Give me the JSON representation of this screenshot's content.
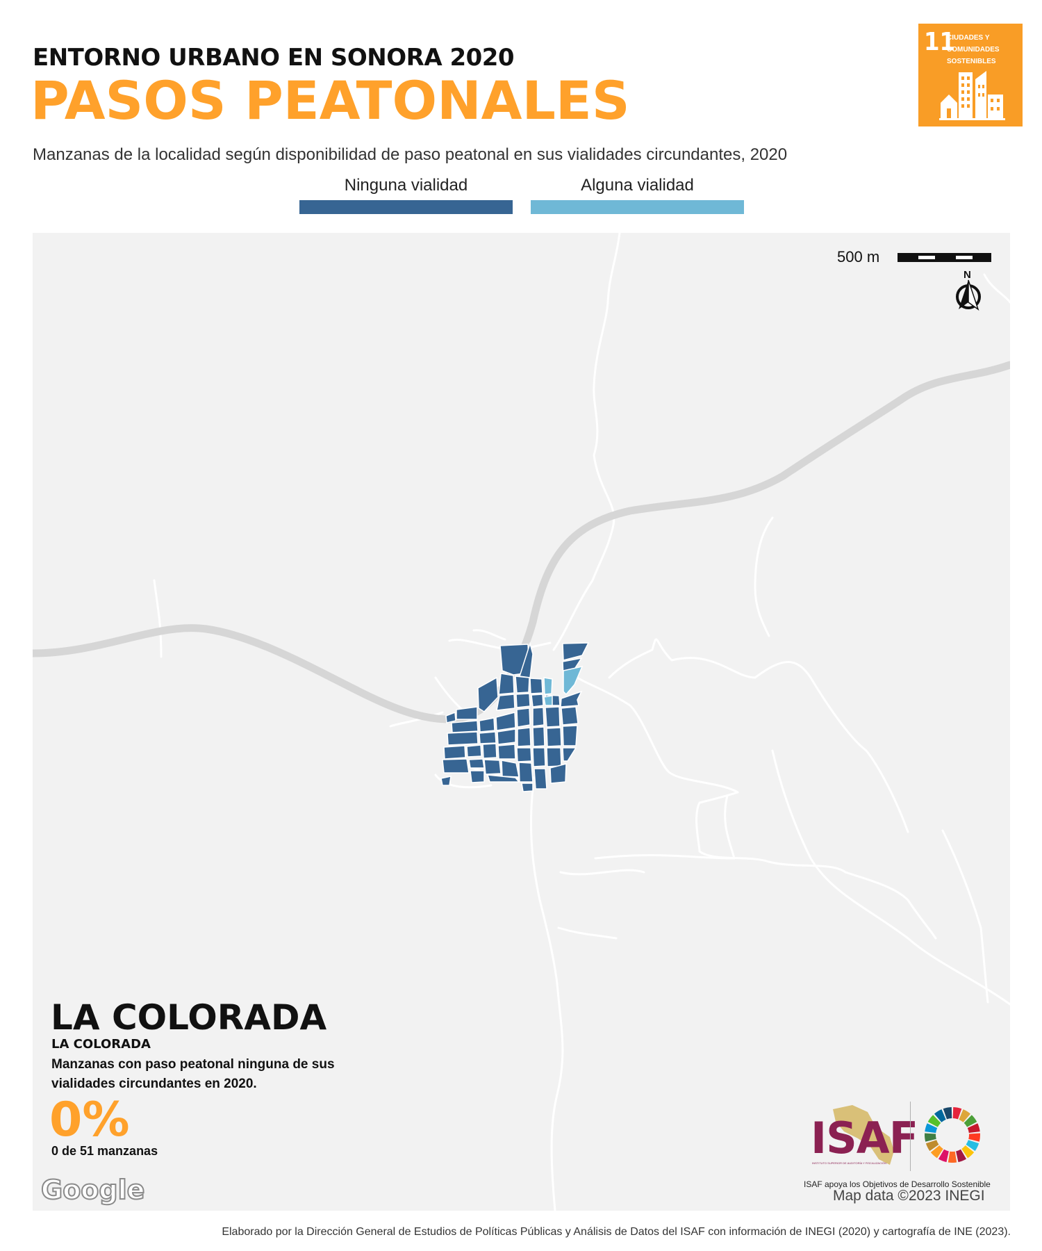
{
  "header": {
    "kicker": "ENTORNO URBANO EN SONORA 2020",
    "title": "PASOS PEATONALES",
    "subtitle": "Manzanas de la localidad según disponibilidad de paso peatonal en sus vialidades circundantes, 2020"
  },
  "legend": [
    {
      "label": "Ninguna vialidad",
      "color": "#376593"
    },
    {
      "label": "Alguna vialidad",
      "color": "#6fb8d6"
    }
  ],
  "sdg_badge": {
    "number": "11",
    "line1": "CIUDADES Y",
    "line2": "COMUNIDADES",
    "line3": "SOSTENIBLES",
    "color": "#f99d26",
    "icon": "city-buildings-icon"
  },
  "map": {
    "scale_label": "500 m",
    "north_label": "N",
    "background": "#f2f2f2",
    "attribution": "Map data ©2023 INEGI",
    "provider_logo": "Google"
  },
  "locality": {
    "name": "LA COLORADA",
    "municipality": "LA COLORADA",
    "description_line1": "Manzanas con paso peatonal ninguna de sus",
    "description_line2": "vialidades circundantes en 2020.",
    "percent": "0%",
    "count_text": "0 de 51 manzanas"
  },
  "logos": {
    "isaf_text": "ISAF",
    "isaf_subtitle": "INSTITUTO SUPERIOR DE AUDITORÍA Y FISCALIZACIÓN",
    "isaf_caption": "ISAF apoya los Objetivos de Desarrollo Sostenible"
  },
  "footer": {
    "credit": "Elaborado por la Dirección General de Estudios de Políticas Públicas y Análisis de Datos del ISAF con información de INEGI (2020) y cartografía de INE (2023)."
  }
}
